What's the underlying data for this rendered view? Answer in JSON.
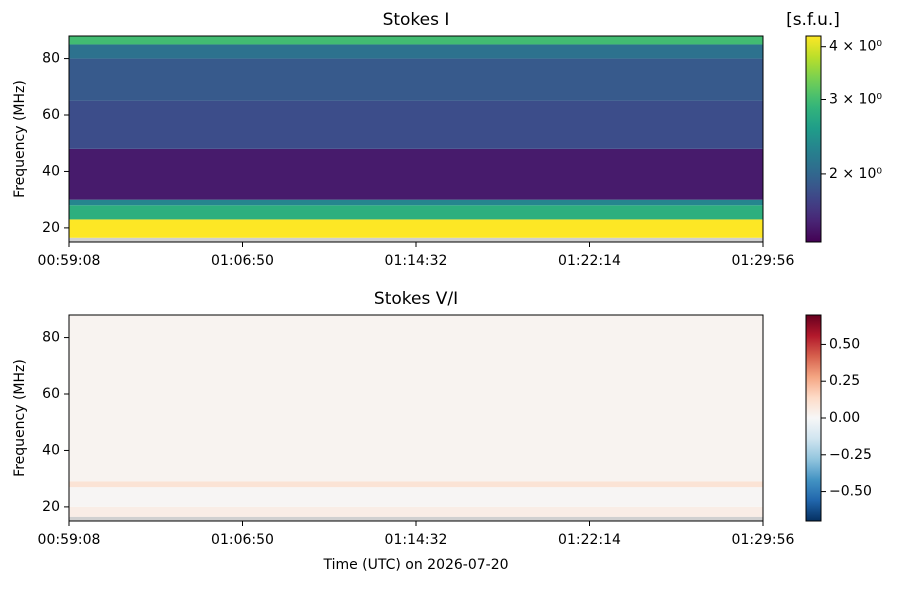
{
  "chart_data": [
    {
      "type": "heatmap",
      "title": "Stokes I",
      "ylabel": "Frequency (MHz)",
      "xlim": [
        "00:59:08",
        "01:29:56"
      ],
      "xticks": [
        "00:59:08",
        "01:06:50",
        "01:14:32",
        "01:22:14",
        "01:29:56"
      ],
      "ylim": [
        15,
        88
      ],
      "yticks": [
        20,
        40,
        60,
        80
      ],
      "y_bins": [
        15,
        16.5,
        23,
        28,
        30,
        48,
        65,
        80,
        85,
        88
      ],
      "values": [
        null,
        4.5,
        2.8,
        2.3,
        1.5,
        1.8,
        1.9,
        2.1,
        3.0
      ],
      "colormap": "viridis",
      "color_scale": "log",
      "clim": [
        1.38,
        4.24
      ],
      "colorbar_ticks": [
        {
          "value": 2,
          "label": "2 × 10⁰"
        },
        {
          "value": 3,
          "label": "3 × 10⁰"
        },
        {
          "value": 4,
          "label": "4 × 10⁰"
        }
      ],
      "colorbar_label": "[s.f.u.]"
    },
    {
      "type": "heatmap",
      "title": "Stokes V/I",
      "ylabel": "Frequency (MHz)",
      "xlabel": "Time (UTC) on 2026-07-20",
      "xlim": [
        "00:59:08",
        "01:29:56"
      ],
      "xticks": [
        "00:59:08",
        "01:06:50",
        "01:14:32",
        "01:22:14",
        "01:29:56"
      ],
      "ylim": [
        15,
        88
      ],
      "yticks": [
        20,
        40,
        60,
        80
      ],
      "y_bins": [
        15,
        16.5,
        20,
        27,
        29,
        88
      ],
      "values": [
        null,
        0.05,
        0.01,
        0.1,
        0.02
      ],
      "colormap": "RdBu_r",
      "color_scale": "linear",
      "clim": [
        -0.7,
        0.7
      ],
      "colorbar_ticks": [
        {
          "value": -0.5,
          "label": "−0.50"
        },
        {
          "value": -0.25,
          "label": "−0.25"
        },
        {
          "value": 0,
          "label": "0.00"
        },
        0.25,
        {
          "value": 0.5,
          "label": "0.50"
        }
      ]
    }
  ]
}
